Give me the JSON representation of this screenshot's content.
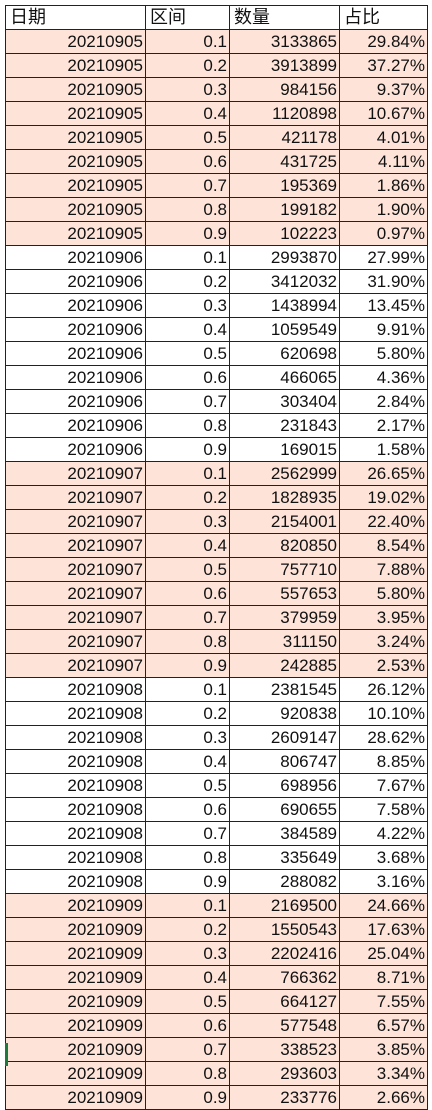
{
  "headers": {
    "date": "日期",
    "range": "区间",
    "count": "数量",
    "ratio": "占比"
  },
  "rows": [
    {
      "date": "20210905",
      "range": "0.1",
      "count": "3133865",
      "ratio": "29.84%",
      "shade": true
    },
    {
      "date": "20210905",
      "range": "0.2",
      "count": "3913899",
      "ratio": "37.27%",
      "shade": true
    },
    {
      "date": "20210905",
      "range": "0.3",
      "count": "984156",
      "ratio": "9.37%",
      "shade": true
    },
    {
      "date": "20210905",
      "range": "0.4",
      "count": "1120898",
      "ratio": "10.67%",
      "shade": true
    },
    {
      "date": "20210905",
      "range": "0.5",
      "count": "421178",
      "ratio": "4.01%",
      "shade": true
    },
    {
      "date": "20210905",
      "range": "0.6",
      "count": "431725",
      "ratio": "4.11%",
      "shade": true
    },
    {
      "date": "20210905",
      "range": "0.7",
      "count": "195369",
      "ratio": "1.86%",
      "shade": true
    },
    {
      "date": "20210905",
      "range": "0.8",
      "count": "199182",
      "ratio": "1.90%",
      "shade": true
    },
    {
      "date": "20210905",
      "range": "0.9",
      "count": "102223",
      "ratio": "0.97%",
      "shade": true
    },
    {
      "date": "20210906",
      "range": "0.1",
      "count": "2993870",
      "ratio": "27.99%",
      "shade": false
    },
    {
      "date": "20210906",
      "range": "0.2",
      "count": "3412032",
      "ratio": "31.90%",
      "shade": false
    },
    {
      "date": "20210906",
      "range": "0.3",
      "count": "1438994",
      "ratio": "13.45%",
      "shade": false
    },
    {
      "date": "20210906",
      "range": "0.4",
      "count": "1059549",
      "ratio": "9.91%",
      "shade": false
    },
    {
      "date": "20210906",
      "range": "0.5",
      "count": "620698",
      "ratio": "5.80%",
      "shade": false
    },
    {
      "date": "20210906",
      "range": "0.6",
      "count": "466065",
      "ratio": "4.36%",
      "shade": false
    },
    {
      "date": "20210906",
      "range": "0.7",
      "count": "303404",
      "ratio": "2.84%",
      "shade": false
    },
    {
      "date": "20210906",
      "range": "0.8",
      "count": "231843",
      "ratio": "2.17%",
      "shade": false
    },
    {
      "date": "20210906",
      "range": "0.9",
      "count": "169015",
      "ratio": "1.58%",
      "shade": false
    },
    {
      "date": "20210907",
      "range": "0.1",
      "count": "2562999",
      "ratio": "26.65%",
      "shade": true
    },
    {
      "date": "20210907",
      "range": "0.2",
      "count": "1828935",
      "ratio": "19.02%",
      "shade": true
    },
    {
      "date": "20210907",
      "range": "0.3",
      "count": "2154001",
      "ratio": "22.40%",
      "shade": true
    },
    {
      "date": "20210907",
      "range": "0.4",
      "count": "820850",
      "ratio": "8.54%",
      "shade": true
    },
    {
      "date": "20210907",
      "range": "0.5",
      "count": "757710",
      "ratio": "7.88%",
      "shade": true
    },
    {
      "date": "20210907",
      "range": "0.6",
      "count": "557653",
      "ratio": "5.80%",
      "shade": true
    },
    {
      "date": "20210907",
      "range": "0.7",
      "count": "379959",
      "ratio": "3.95%",
      "shade": true
    },
    {
      "date": "20210907",
      "range": "0.8",
      "count": "311150",
      "ratio": "3.24%",
      "shade": true
    },
    {
      "date": "20210907",
      "range": "0.9",
      "count": "242885",
      "ratio": "2.53%",
      "shade": true
    },
    {
      "date": "20210908",
      "range": "0.1",
      "count": "2381545",
      "ratio": "26.12%",
      "shade": false
    },
    {
      "date": "20210908",
      "range": "0.2",
      "count": "920838",
      "ratio": "10.10%",
      "shade": false
    },
    {
      "date": "20210908",
      "range": "0.3",
      "count": "2609147",
      "ratio": "28.62%",
      "shade": false
    },
    {
      "date": "20210908",
      "range": "0.4",
      "count": "806747",
      "ratio": "8.85%",
      "shade": false
    },
    {
      "date": "20210908",
      "range": "0.5",
      "count": "698956",
      "ratio": "7.67%",
      "shade": false
    },
    {
      "date": "20210908",
      "range": "0.6",
      "count": "690655",
      "ratio": "7.58%",
      "shade": false
    },
    {
      "date": "20210908",
      "range": "0.7",
      "count": "384589",
      "ratio": "4.22%",
      "shade": false
    },
    {
      "date": "20210908",
      "range": "0.8",
      "count": "335649",
      "ratio": "3.68%",
      "shade": false
    },
    {
      "date": "20210908",
      "range": "0.9",
      "count": "288082",
      "ratio": "3.16%",
      "shade": false
    },
    {
      "date": "20210909",
      "range": "0.1",
      "count": "2169500",
      "ratio": "24.66%",
      "shade": true
    },
    {
      "date": "20210909",
      "range": "0.2",
      "count": "1550543",
      "ratio": "17.63%",
      "shade": true
    },
    {
      "date": "20210909",
      "range": "0.3",
      "count": "2202416",
      "ratio": "25.04%",
      "shade": true
    },
    {
      "date": "20210909",
      "range": "0.4",
      "count": "766362",
      "ratio": "8.71%",
      "shade": true
    },
    {
      "date": "20210909",
      "range": "0.5",
      "count": "664127",
      "ratio": "7.55%",
      "shade": true
    },
    {
      "date": "20210909",
      "range": "0.6",
      "count": "577548",
      "ratio": "6.57%",
      "shade": true
    },
    {
      "date": "20210909",
      "range": "0.7",
      "count": "338523",
      "ratio": "3.85%",
      "shade": true
    },
    {
      "date": "20210909",
      "range": "0.8",
      "count": "293603",
      "ratio": "3.34%",
      "shade": true
    },
    {
      "date": "20210909",
      "range": "0.9",
      "count": "233776",
      "ratio": "2.66%",
      "shade": true
    }
  ],
  "colors": {
    "shaded_row": "#fde3d8",
    "plain_row": "#ffffff",
    "grid_line": "#222222",
    "selection_marker": "#1e7a3c"
  }
}
